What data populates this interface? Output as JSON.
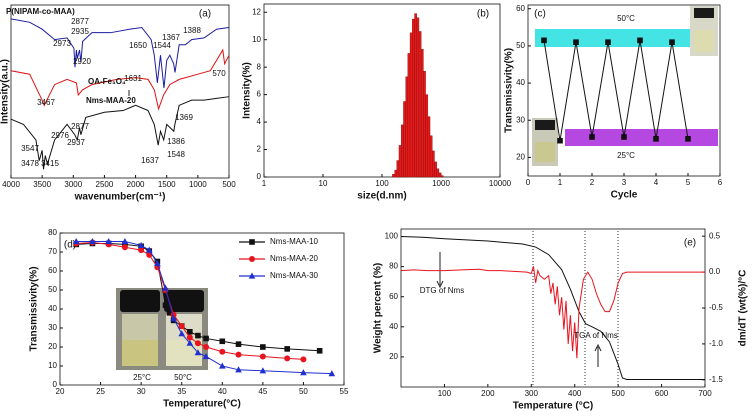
{
  "chart_data": [
    {
      "type": "line",
      "label": "(a)",
      "xlabel": "wavenumber(cm⁻¹)",
      "ylabel": "Intensity(a.u.)",
      "xlim": [
        4000,
        500
      ],
      "xticks": [
        4000,
        3500,
        3000,
        2500,
        2000,
        1500,
        1000,
        500
      ],
      "ylim": [
        0,
        100
      ],
      "legend": "inline",
      "series": [
        {
          "name": "P(NIPAM-co-MAA)",
          "color": "#1c1ca0",
          "x": [
            4000,
            3700,
            3500,
            3300,
            3100,
            2990,
            2973,
            2950,
            2935,
            2900,
            2877,
            2850,
            2700,
            2400,
            2100,
            1900,
            1750,
            1700,
            1650,
            1600,
            1544,
            1500,
            1450,
            1388,
            1367,
            1300,
            1200,
            1100,
            900,
            700,
            500
          ],
          "values": [
            92,
            90,
            86,
            80,
            81,
            75,
            64,
            74,
            69,
            74,
            67,
            79,
            84,
            84,
            86,
            87,
            80,
            71,
            55,
            71,
            52,
            68,
            71,
            66,
            61,
            77,
            77,
            80,
            81,
            86,
            87
          ]
        },
        {
          "name": "OA-Fe₃O₄",
          "color": "#e01010",
          "x": [
            4000,
            3700,
            3500,
            3467,
            3300,
            3100,
            2950,
            2920,
            2850,
            2700,
            2300,
            2000,
            1800,
            1700,
            1631,
            1550,
            1450,
            1300,
            1000,
            800,
            700,
            600,
            570,
            500
          ],
          "values": [
            62,
            60,
            45,
            42,
            54,
            57,
            55,
            48,
            51,
            54,
            57,
            58,
            57,
            51,
            40,
            48,
            54,
            57,
            60,
            62,
            68,
            74,
            66,
            71
          ]
        },
        {
          "name": "Nms-MAA-20",
          "color": "#111111",
          "x": [
            4000,
            3800,
            3600,
            3547,
            3500,
            3478,
            3450,
            3415,
            3300,
            3100,
            2976,
            2937,
            2900,
            2877,
            2800,
            2500,
            2200,
            2000,
            1800,
            1700,
            1637,
            1600,
            1548,
            1500,
            1386,
            1369,
            1300,
            1100,
            900,
            700,
            500
          ],
          "values": [
            34,
            31,
            22,
            10,
            16,
            5,
            13,
            8,
            22,
            31,
            25,
            22,
            29,
            25,
            35,
            38,
            39,
            42,
            39,
            31,
            19,
            27,
            22,
            31,
            27,
            31,
            42,
            45,
            45,
            46,
            47
          ]
        }
      ],
      "annotations": [
        "2877",
        "2935",
        "2973",
        "1650",
        "1544",
        "1367",
        "1388",
        "2920",
        "1631",
        "570",
        "3467",
        "2877",
        "2937",
        "2976",
        "1637",
        "1386",
        "1548",
        "1369",
        "3547",
        "3478",
        "3415"
      ]
    },
    {
      "type": "histogram",
      "label": "(b)",
      "xlabel": "size(d.nm)",
      "ylabel": "Intensity(%)",
      "xscale": "log",
      "xlim": [
        1,
        10000
      ],
      "xticks": [
        1,
        10,
        100,
        1000,
        10000
      ],
      "ylim": [
        0,
        12.6
      ],
      "yticks": [
        0,
        2,
        4,
        6,
        8,
        10,
        12
      ],
      "color": "#e41a1a",
      "bins": [
        150,
        164,
        178,
        194,
        212,
        231,
        252,
        274,
        299,
        326,
        356,
        388,
        423,
        461,
        503,
        548,
        598,
        652,
        711,
        775,
        845,
        922,
        1005,
        1096
      ],
      "values": [
        0.2,
        0.5,
        1.2,
        2.3,
        3.8,
        5.5,
        7.3,
        9,
        10.5,
        11.5,
        11.9,
        11.6,
        10.6,
        9.3,
        7.7,
        6,
        4.4,
        3,
        1.9,
        1.1,
        0.6,
        0.3,
        0.1
      ]
    },
    {
      "type": "line",
      "label": "(c)",
      "xlabel": "Cycle",
      "ylabel": "Transmissivity(%)",
      "xlim": [
        0,
        6
      ],
      "xticks": [
        0,
        1,
        2,
        3,
        4,
        5,
        6
      ],
      "ylim": [
        15,
        61
      ],
      "yticks": [
        20,
        30,
        40,
        50,
        60
      ],
      "color": "#111111",
      "marker": "square",
      "x": [
        0.5,
        1,
        1.5,
        2,
        2.5,
        3,
        3.5,
        4,
        4.5,
        5
      ],
      "values": [
        51.5,
        24.5,
        51,
        25.5,
        51,
        25.5,
        51.5,
        25,
        51,
        25
      ],
      "annotations": [
        "50°C",
        "25°C"
      ]
    },
    {
      "type": "line",
      "label": "(d)",
      "xlabel": "Temperature(°C)",
      "ylabel": "Transmissivity(%)",
      "xlim": [
        20,
        55
      ],
      "xticks": [
        20,
        25,
        30,
        35,
        40,
        45,
        50,
        55
      ],
      "ylim": [
        0,
        80
      ],
      "yticks": [
        0,
        10,
        20,
        30,
        40,
        50,
        60,
        70,
        80
      ],
      "legend": "upper right",
      "series": [
        {
          "name": "Nms-MAA-10",
          "color": "#111111",
          "marker": "square",
          "x": [
            22,
            24,
            26,
            28,
            30,
            31,
            32,
            33,
            33.5,
            34,
            35,
            36,
            37,
            38,
            40,
            42,
            45,
            48,
            52
          ],
          "values": [
            74,
            74.5,
            74.5,
            74,
            73,
            70.5,
            65,
            42,
            38,
            34,
            31,
            28,
            26,
            24.5,
            23,
            21.5,
            20,
            19,
            18
          ]
        },
        {
          "name": "Nms-MAA-20",
          "color": "#e8141e",
          "marker": "circle",
          "x": [
            22,
            24,
            26,
            28,
            30,
            31,
            32,
            33,
            34,
            35,
            36,
            37,
            38,
            40,
            42,
            45,
            48,
            50
          ],
          "values": [
            74.5,
            75,
            74,
            72.5,
            71,
            68.5,
            62,
            50,
            37,
            31,
            25,
            22,
            20,
            17.5,
            16,
            15,
            14,
            13.5
          ]
        },
        {
          "name": "Nms-MAA-30",
          "color": "#2030d0",
          "marker": "triangle",
          "x": [
            22,
            24,
            26,
            28,
            30,
            31,
            32,
            33,
            34,
            35,
            36,
            37,
            38,
            40,
            42,
            45,
            50,
            53.5
          ],
          "values": [
            75.5,
            75.5,
            75.5,
            75.5,
            73.5,
            71,
            64,
            51,
            35,
            27,
            22,
            17,
            15,
            10,
            8,
            7.5,
            6.5,
            6
          ]
        }
      ],
      "annotations": [
        "25°C",
        "50°C"
      ]
    },
    {
      "type": "line",
      "label": "(e)",
      "xlabel": "Temperature (°C)",
      "ylabel": "Weight percent (%)",
      "y2label": "dm/dT (wt(%)/°C",
      "xlim": [
        0,
        700
      ],
      "xticks": [
        100,
        200,
        300,
        400,
        500,
        600,
        700
      ],
      "ylim": [
        0,
        105
      ],
      "yticks": [
        20,
        40,
        60,
        80,
        100
      ],
      "y2lim": [
        -1.6,
        0.6
      ],
      "y2ticks": [
        -1.5,
        {
          "value": -1,
          "label": "-1.0"
        },
        -0.5,
        {
          "value": 0,
          "label": "0.0"
        },
        0.5
      ],
      "series": [
        {
          "color": "#111111",
          "x": [
            0,
            50,
            100,
            200,
            280,
            310,
            340,
            370,
            390,
            410,
            425,
            440,
            460,
            480,
            500,
            510,
            520,
            600,
            700
          ],
          "values": [
            100,
            99.5,
            98.5,
            97,
            95,
            93,
            88,
            78,
            65,
            50,
            42,
            40,
            37,
            30,
            15,
            6,
            5,
            5,
            5
          ]
        },
        {
          "color": "#e8141e",
          "axis": "y2",
          "x": [
            0,
            30,
            60,
            100,
            140,
            180,
            200,
            230,
            260,
            290,
            300,
            305,
            310,
            315,
            320,
            330,
            340,
            345,
            350,
            355,
            360,
            365,
            370,
            375,
            380,
            385,
            390,
            395,
            400,
            405,
            410,
            415,
            420,
            430,
            440,
            450,
            460,
            470,
            480,
            490,
            500,
            510,
            520,
            560,
            600,
            650,
            700
          ],
          "values": [
            0.02,
            0.03,
            0.02,
            0.02,
            0.03,
            0.04,
            0.02,
            0.02,
            0.01,
            0,
            -0.02,
            0.08,
            -0.15,
            0.02,
            -0.05,
            -0.1,
            -0.05,
            -0.3,
            -0.15,
            -0.45,
            -0.2,
            -0.6,
            -0.35,
            -0.8,
            -0.4,
            -1,
            -0.6,
            -1.1,
            -0.7,
            -1.2,
            -0.5,
            -0.3,
            -0.1,
            0,
            -0.1,
            -0.3,
            -0.45,
            -0.55,
            -0.55,
            -0.4,
            -0.15,
            -0.02,
            0,
            0,
            0,
            0,
            0
          ]
        }
      ],
      "annotations": [
        "DTG of Nms",
        "TGA of Nms"
      ]
    }
  ]
}
